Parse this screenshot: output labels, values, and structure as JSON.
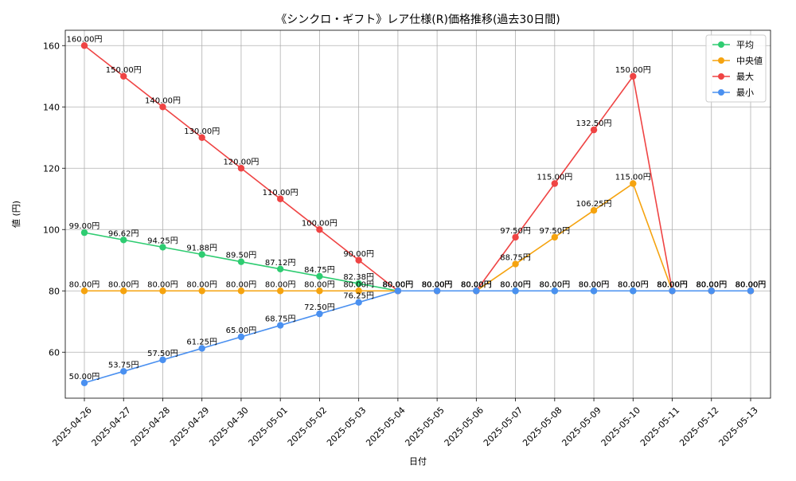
{
  "chart_data": {
    "type": "line",
    "title": "《シンクロ・ギフト》レア仕様(R)価格推移(過去30日間)",
    "xlabel": "日付",
    "ylabel": "値 (円)",
    "ylim": [
      45,
      165
    ],
    "yticks": [
      60,
      80,
      100,
      120,
      140,
      160
    ],
    "grid": true,
    "legend_position": "top-right",
    "label_suffix": "円",
    "categories": [
      "2025-04-26",
      "2025-04-27",
      "2025-04-28",
      "2025-04-29",
      "2025-04-30",
      "2025-05-01",
      "2025-05-02",
      "2025-05-03",
      "2025-05-04",
      "2025-05-05",
      "2025-05-06",
      "2025-05-07",
      "2025-05-08",
      "2025-05-09",
      "2025-05-10",
      "2025-05-11",
      "2025-05-12",
      "2025-05-13"
    ],
    "series": [
      {
        "name": "平均",
        "color": "#2ecc71",
        "values": [
          99.0,
          96.62,
          94.25,
          91.88,
          89.5,
          87.12,
          84.75,
          82.38,
          80.0,
          80.0,
          80.0,
          80.0,
          80.0,
          80.0,
          80.0,
          80.0,
          80.0,
          80.0
        ]
      },
      {
        "name": "中央値",
        "color": "#f5a30f",
        "values": [
          80.0,
          80.0,
          80.0,
          80.0,
          80.0,
          80.0,
          80.0,
          80.0,
          80.0,
          80.0,
          80.0,
          88.75,
          97.5,
          106.25,
          115.0,
          80.0,
          80.0,
          80.0
        ]
      },
      {
        "name": "最大",
        "color": "#ef4444",
        "values": [
          160.0,
          150.0,
          140.0,
          130.0,
          120.0,
          110.0,
          100.0,
          90.0,
          80.0,
          80.0,
          80.0,
          97.5,
          115.0,
          132.5,
          150.0,
          80.0,
          80.0,
          80.0
        ]
      },
      {
        "name": "最小",
        "color": "#4a90f0",
        "values": [
          50.0,
          53.75,
          57.5,
          61.25,
          65.0,
          68.75,
          72.5,
          76.25,
          80.0,
          80.0,
          80.0,
          80.0,
          80.0,
          80.0,
          80.0,
          80.0,
          80.0,
          80.0
        ]
      }
    ]
  }
}
